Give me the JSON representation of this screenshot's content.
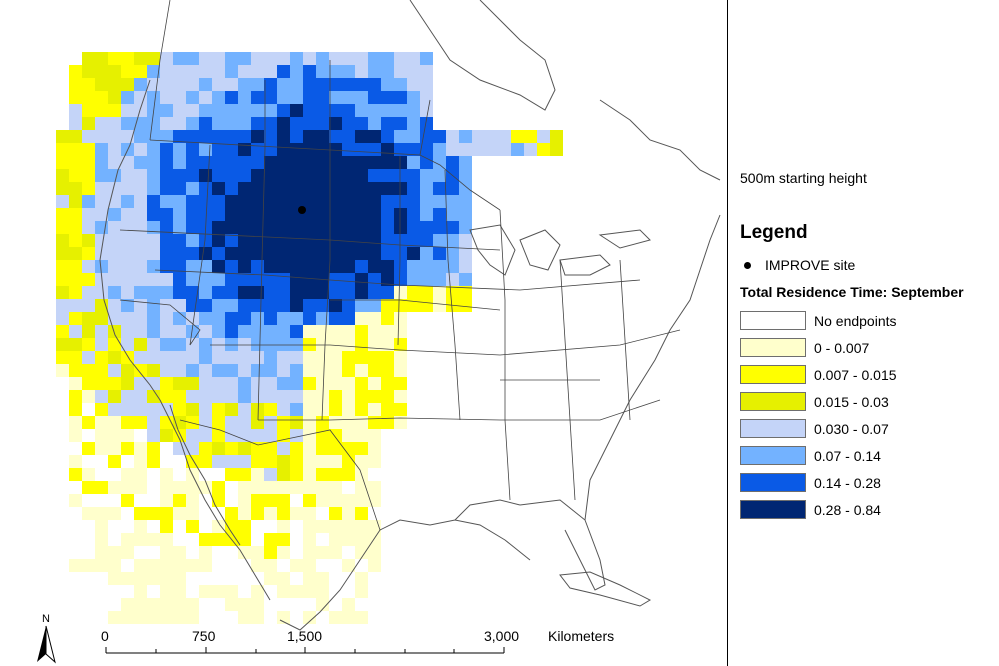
{
  "map": {
    "subtitle": "500m starting height",
    "north_arrow_label": "N"
  },
  "legend": {
    "title": "Legend",
    "site_label": "IMPROVE site",
    "residence_title": "Total Residence Time: September",
    "classes": [
      {
        "label": "No endpoints",
        "color": "#ffffff"
      },
      {
        "label": "0 - 0.007",
        "color": "#ffffcc"
      },
      {
        "label": "0.007 - 0.015",
        "color": "#ffff00"
      },
      {
        "label": "0.015 - 0.03",
        "color": "#e6f000"
      },
      {
        "label": "0.030 - 0.07",
        "color": "#c4d4f8"
      },
      {
        "label": "0.07 - 0.14",
        "color": "#73b2ff"
      },
      {
        "label": "0.14 - 0.28",
        "color": "#0a5ae6"
      },
      {
        "label": "0.28 - 0.84",
        "color": "#002673"
      }
    ]
  },
  "scale_bar": {
    "ticks": [
      "0",
      "750",
      "1,500",
      "3,000"
    ],
    "units": "Kilometers"
  }
}
